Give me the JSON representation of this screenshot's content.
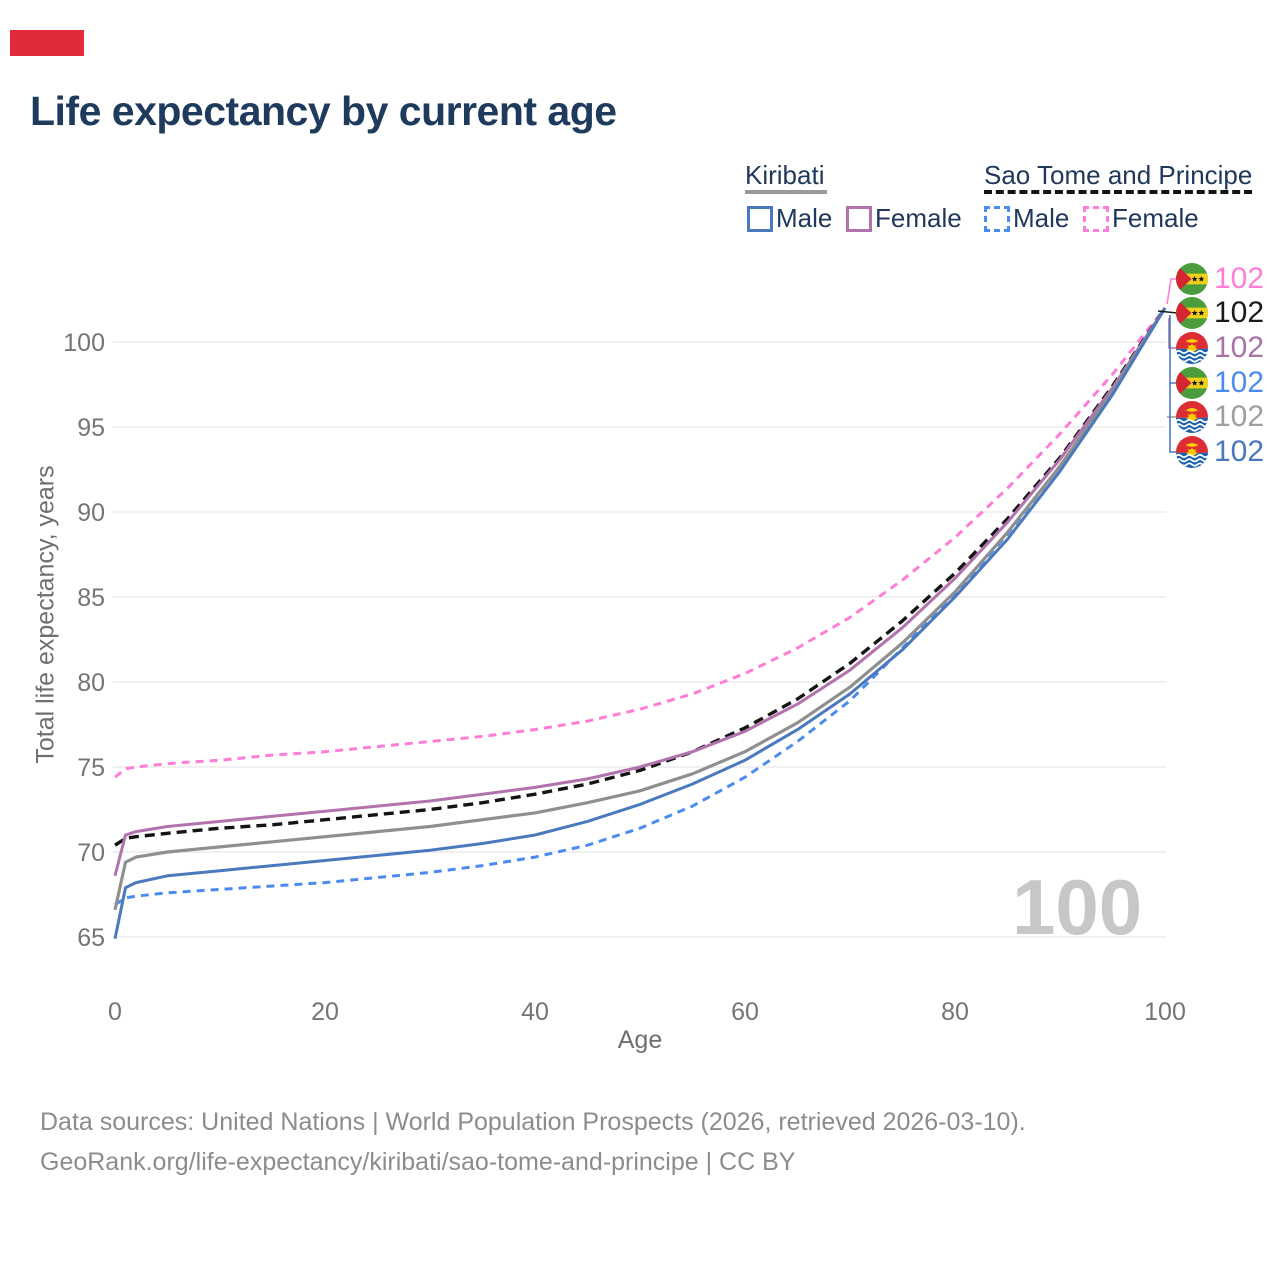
{
  "title": "Life expectancy by current age",
  "accent_bar_color": "#e12b38",
  "legend": {
    "groups": [
      {
        "label": "Kiribati",
        "underline_style": "solid",
        "underline_color": "#9a9a9a",
        "items": [
          {
            "label": "Male",
            "color": "#4a79bd",
            "dash": false
          },
          {
            "label": "Female",
            "color": "#b172ad",
            "dash": false
          }
        ]
      },
      {
        "label": "Sao Tome and Principe",
        "underline_style": "dashed",
        "underline_color": "#141414",
        "items": [
          {
            "label": "Male",
            "color": "#4b8bf0",
            "dash": true
          },
          {
            "label": "Female",
            "color": "#ff7dd6",
            "dash": true
          }
        ]
      }
    ]
  },
  "watermark": "100",
  "end_labels": [
    {
      "value": "102",
      "flag": "stp",
      "color": "#ff7dd6",
      "series": "Sao Tome and Principe Female"
    },
    {
      "value": "102",
      "flag": "stp",
      "color": "#1a1a1a",
      "series": "Sao Tome and Principe Total"
    },
    {
      "value": "102",
      "flag": "kiribati",
      "color": "#a874a8",
      "series": "Kiribati Female"
    },
    {
      "value": "102",
      "flag": "stp",
      "color": "#4b8bf0",
      "series": "Sao Tome and Principe Male"
    },
    {
      "value": "102",
      "flag": "kiribati",
      "color": "#9e9e9e",
      "series": "Kiribati Total"
    },
    {
      "value": "102",
      "flag": "kiribati",
      "color": "#4a79bd",
      "series": "Kiribati Male"
    }
  ],
  "chart_data": {
    "type": "line",
    "title": "Life expectancy by current age",
    "xlabel": "Age",
    "ylabel": "Total life expectancy, years",
    "x_ticks": [
      0,
      20,
      40,
      60,
      80,
      100
    ],
    "y_ticks": [
      65,
      70,
      75,
      80,
      85,
      90,
      95,
      100
    ],
    "xlim": [
      0,
      100
    ],
    "ylim": [
      62.5,
      103.5
    ],
    "grid": "horizontal",
    "legend_position": "top-right",
    "x": [
      0,
      1,
      2,
      5,
      10,
      15,
      20,
      25,
      30,
      35,
      40,
      45,
      50,
      55,
      60,
      65,
      70,
      75,
      80,
      85,
      90,
      95,
      100
    ],
    "series": [
      {
        "name": "Sao Tome and Principe Female",
        "color": "#ff7dd6",
        "dash": "8 6",
        "width": 3,
        "values": [
          74.4,
          74.9,
          75.0,
          75.2,
          75.4,
          75.7,
          75.9,
          76.2,
          76.5,
          76.8,
          77.2,
          77.7,
          78.4,
          79.3,
          80.5,
          82.0,
          83.8,
          86.0,
          88.5,
          91.4,
          94.6,
          98.1,
          102
        ]
      },
      {
        "name": "Sao Tome and Principe Total",
        "color": "#141414",
        "dash": "10 6",
        "width": 3.4,
        "values": [
          70.4,
          70.8,
          70.9,
          71.1,
          71.4,
          71.6,
          71.9,
          72.2,
          72.5,
          72.9,
          73.4,
          74.0,
          74.8,
          75.9,
          77.3,
          79.0,
          81.1,
          83.6,
          86.4,
          89.6,
          93.2,
          97.4,
          102
        ]
      },
      {
        "name": "Kiribati Female",
        "color": "#b172ad",
        "dash": null,
        "width": 3,
        "values": [
          68.6,
          71.0,
          71.2,
          71.5,
          71.8,
          72.1,
          72.4,
          72.7,
          73.0,
          73.4,
          73.8,
          74.3,
          75.0,
          75.9,
          77.1,
          78.7,
          80.7,
          83.2,
          86.1,
          89.4,
          93.1,
          97.3,
          102
        ]
      },
      {
        "name": "Sao Tome and Principe Male",
        "color": "#4b8bf0",
        "dash": "8 6",
        "width": 3,
        "values": [
          66.9,
          67.3,
          67.4,
          67.6,
          67.8,
          68.0,
          68.2,
          68.5,
          68.8,
          69.2,
          69.7,
          70.4,
          71.4,
          72.7,
          74.4,
          76.5,
          78.9,
          82.0,
          85.2,
          88.7,
          92.7,
          97.1,
          102
        ]
      },
      {
        "name": "Kiribati Total",
        "color": "#8f8f8f",
        "dash": null,
        "width": 3.2,
        "values": [
          66.6,
          69.4,
          69.7,
          70.0,
          70.3,
          70.6,
          70.9,
          71.2,
          71.5,
          71.9,
          72.3,
          72.9,
          73.6,
          74.6,
          75.9,
          77.6,
          79.7,
          82.3,
          85.3,
          88.8,
          92.7,
          97.1,
          102
        ]
      },
      {
        "name": "Kiribati Male",
        "color": "#4a79bd",
        "dash": null,
        "width": 3,
        "values": [
          64.9,
          67.9,
          68.2,
          68.6,
          68.9,
          69.2,
          69.5,
          69.8,
          70.1,
          70.5,
          71.0,
          71.8,
          72.8,
          74.0,
          75.4,
          77.2,
          79.3,
          81.9,
          85.0,
          88.4,
          92.4,
          96.9,
          102
        ]
      }
    ]
  },
  "footer": {
    "line1": "Data sources: United Nations | World Population Prospects (2026, retrieved 2026-03-10).",
    "line2": "GeoRank.org/life-expectancy/kiribati/sao-tome-and-principe | CC BY"
  }
}
